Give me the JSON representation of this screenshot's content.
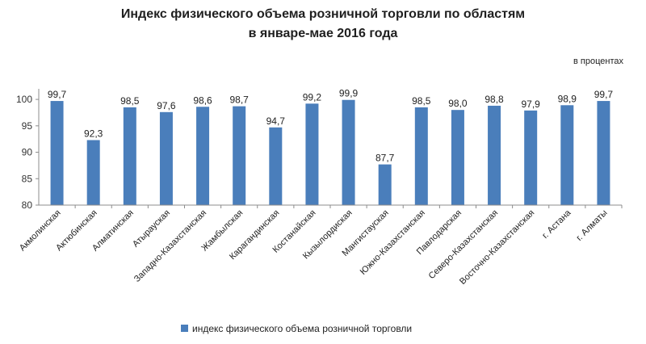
{
  "title_line1": "Индекс физического объема розничной торговли по областям",
  "title_line2": "в январе-мае 2016 года",
  "units": "в процентах",
  "legend_label": "индекс физического объема  розничной  торговли",
  "colors": {
    "bar": "#4a7ebb",
    "axis": "#8c8c8c"
  },
  "chart_data": {
    "type": "bar",
    "categories": [
      "Акмолинская",
      "Актюбинская",
      "Алматинская",
      "Атырауская",
      "Западно-Казахстанская",
      "Жамбылская",
      "Карагандинская",
      "Костанайская",
      "Кызылордиская",
      "Мангистауская",
      "Южно-Казахстанская",
      "Павлодарская",
      "Северо-Казахстанская",
      "Восточно-Казахстанская",
      "г. Астана",
      "г. Алматы"
    ],
    "series": [
      {
        "name": "индекс физического объема  розничной  торговли",
        "values": [
          99.7,
          92.3,
          98.5,
          97.6,
          98.6,
          98.7,
          94.7,
          99.2,
          99.9,
          87.7,
          98.5,
          98.0,
          98.8,
          97.9,
          98.9,
          99.7
        ],
        "labels": [
          "99,7",
          "92,3",
          "98,5",
          "97,6",
          "98,6",
          "98,7",
          "94,7",
          "99,2",
          "99,9",
          "87,7",
          "98,5",
          "98,0",
          "98,8",
          "97,9",
          "98,9",
          "99,7"
        ]
      }
    ],
    "yticks": [
      "80",
      "85",
      "90",
      "95",
      "100"
    ],
    "ylim": [
      80,
      102
    ],
    "grid": false,
    "legend_position": "bottom"
  }
}
